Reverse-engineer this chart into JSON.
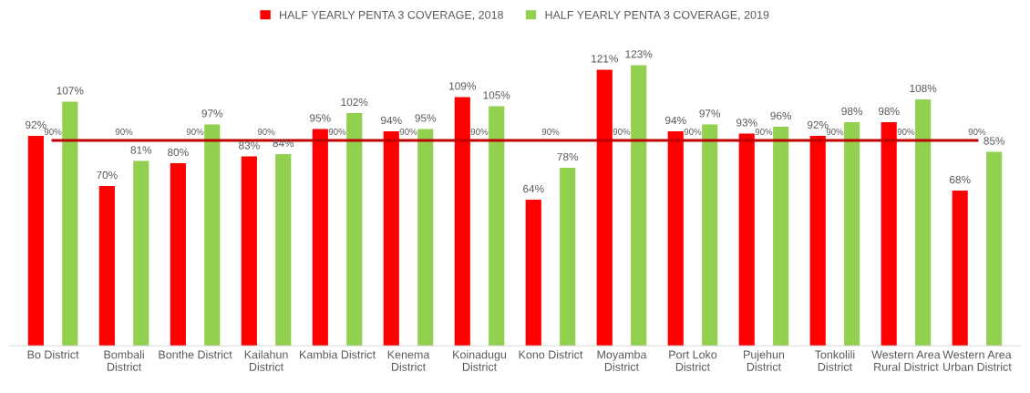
{
  "chart_data": {
    "type": "bar",
    "categories": [
      "Bo District",
      "Bombali\nDistrict",
      "Bonthe District",
      "Kailahun\nDistrict",
      "Kambia District",
      "Kenema\nDistrict",
      "Koinadugu\nDistrict",
      "Kono District",
      "Moyamba\nDistrict",
      "Port Loko\nDistrict",
      "Pujehun\nDistrict",
      "Tonkolili\nDistrict",
      "Western Area\nRural District",
      "Western Area\nUrban District"
    ],
    "series": [
      {
        "name": "HALF YEARLY PENTA 3 COVERAGE, 2018",
        "color": "#ff0000",
        "values": [
          92,
          70,
          80,
          83,
          95,
          94,
          109,
          64,
          121,
          94,
          93,
          92,
          98,
          68
        ],
        "value_labels": [
          "92%",
          "70%",
          "80%",
          "83%",
          "95%",
          "94%",
          "109%",
          "64%",
          "121%",
          "94%",
          "93%",
          "92%",
          "98%",
          "68%"
        ]
      },
      {
        "name": "HALF YEARLY PENTA 3 COVERAGE, 2019",
        "color": "#92d050",
        "values": [
          107,
          81,
          97,
          84,
          102,
          95,
          105,
          78,
          123,
          97,
          96,
          98,
          108,
          85
        ],
        "value_labels": [
          "107%",
          "81%",
          "97%",
          "84%",
          "102%",
          "95%",
          "105%",
          "78%",
          "123%",
          "97%",
          "96%",
          "98%",
          "108%",
          "85%"
        ]
      },
      {
        "type": "line",
        "color": "#c00000",
        "values": [
          90,
          90,
          90,
          90,
          90,
          90,
          90,
          90,
          90,
          90,
          90,
          90,
          90,
          90
        ],
        "value_labels": [
          "90%",
          "90%",
          "90%",
          "90%",
          "90%",
          "90%",
          "90%",
          "90%",
          "90%",
          "90%",
          "90%",
          "90%",
          "90%",
          "90%"
        ]
      }
    ],
    "legend": "top",
    "grid": false,
    "tick_labels": "x"
  }
}
